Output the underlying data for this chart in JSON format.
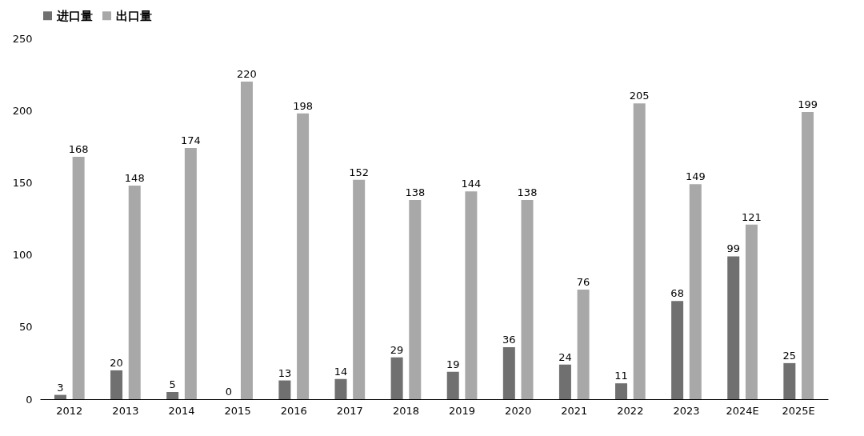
{
  "chart_data": {
    "type": "bar",
    "categories": [
      "2012",
      "2013",
      "2014",
      "2015",
      "2016",
      "2017",
      "2018",
      "2019",
      "2020",
      "2021",
      "2022",
      "2023",
      "2024E",
      "2025E"
    ],
    "series": [
      {
        "name": "进口量",
        "color": "#707070",
        "values": [
          3,
          20,
          5,
          0,
          13,
          14,
          29,
          19,
          36,
          24,
          11,
          68,
          99,
          25
        ]
      },
      {
        "name": "出口量",
        "color": "#a8a8a8",
        "values": [
          168,
          148,
          174,
          220,
          198,
          152,
          138,
          144,
          138,
          76,
          205,
          149,
          121,
          199
        ]
      }
    ],
    "ylim": [
      0,
      250
    ],
    "yticks": [
      0,
      50,
      100,
      150,
      200,
      250
    ],
    "grid": false,
    "legend": "top",
    "data_labels": true
  }
}
